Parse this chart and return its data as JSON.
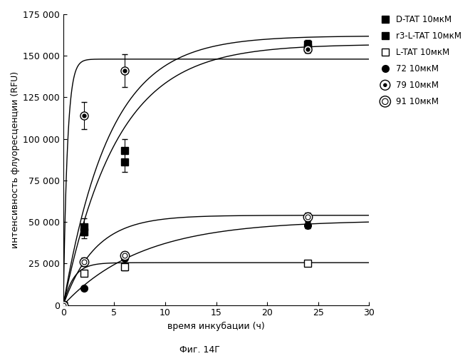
{
  "xlabel": "время инкубации (ч)",
  "ylabel": "интенсивность флуоресценции (RFU)",
  "caption": "Фиг. 14Г",
  "xlim": [
    0,
    30
  ],
  "ylim": [
    0,
    175000
  ],
  "xticks": [
    0,
    5,
    10,
    15,
    20,
    25,
    30
  ],
  "yticks": [
    0,
    25000,
    50000,
    75000,
    100000,
    125000,
    150000,
    175000
  ],
  "series": [
    {
      "label": "D-TAT 10мкМ",
      "marker": "s",
      "fillstyle": "full",
      "x": [
        0,
        2,
        6,
        24
      ],
      "y": [
        0,
        47000,
        93000,
        155000
      ],
      "yerr": [
        0,
        5000,
        7000,
        3000
      ],
      "plateau": 162000,
      "rate": 0.22
    },
    {
      "label": "r3-L-TAT 10мкМ",
      "marker": "s",
      "fillstyle": "full",
      "x": [
        0,
        2,
        6,
        24
      ],
      "y": [
        0,
        44000,
        86000,
        157000
      ],
      "yerr": [
        0,
        4000,
        6000,
        2500
      ],
      "plateau": 157000,
      "rate": 0.19
    },
    {
      "label": "L-TAT 10мкМ",
      "marker": "s",
      "fillstyle": "none",
      "x": [
        0,
        2,
        6,
        24
      ],
      "y": [
        0,
        19000,
        23000,
        25000
      ],
      "yerr": [
        0,
        1500,
        2000,
        1000
      ],
      "plateau": 25500,
      "rate": 1.0
    },
    {
      "label": "72 10мкМ",
      "marker": "o",
      "fillstyle": "full",
      "x": [
        0,
        2,
        6,
        24
      ],
      "y": [
        0,
        10000,
        28000,
        48000
      ],
      "yerr": [
        0,
        1000,
        2500,
        2000
      ],
      "plateau": 51000,
      "rate": 0.13
    },
    {
      "label": "79 10мкМ",
      "marker": "bullseye",
      "x": [
        0,
        2,
        6,
        24
      ],
      "y": [
        0,
        114000,
        141000,
        154000
      ],
      "yerr": [
        0,
        8000,
        10000,
        2000
      ],
      "plateau": 148000,
      "rate": 2.5
    },
    {
      "label": "91 10мкМ",
      "marker": "doublering",
      "x": [
        0,
        2,
        6,
        24
      ],
      "y": [
        0,
        26000,
        30000,
        53000
      ],
      "yerr": [
        0,
        2500,
        2000,
        2500
      ],
      "plateau": 54000,
      "rate": 0.32
    }
  ]
}
